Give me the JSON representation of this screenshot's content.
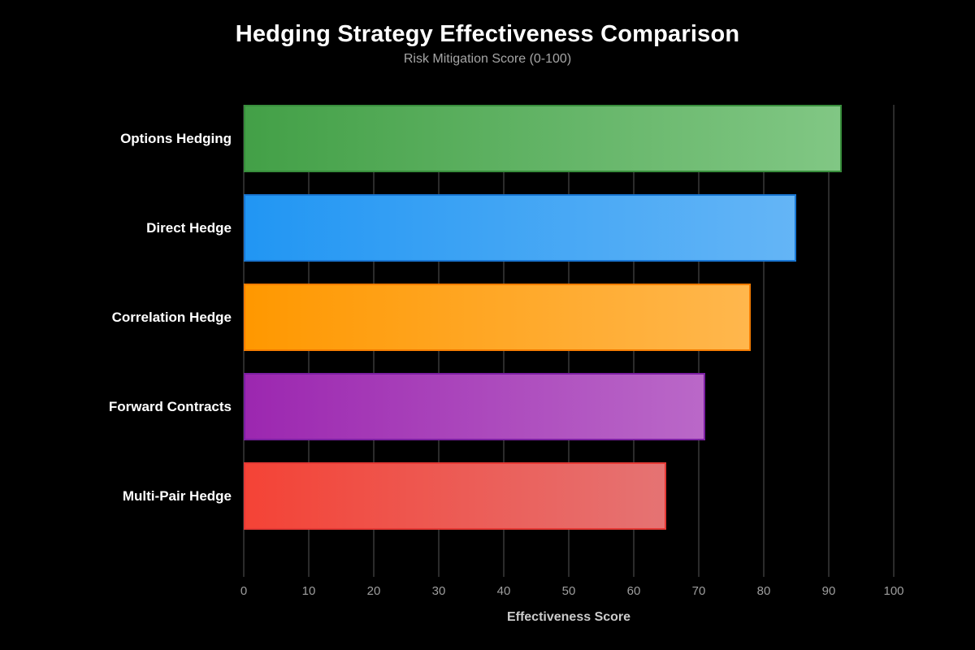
{
  "header": {
    "title": "Hedging Strategy Effectiveness Comparison",
    "subtitle": "Risk Mitigation Score (0-100)"
  },
  "chart_data": {
    "type": "bar",
    "orientation": "horizontal",
    "title": "Hedging Strategy Effectiveness Comparison",
    "subtitle": "Risk Mitigation Score (0-100)",
    "xlabel": "Effectiveness Score",
    "ylabel": "",
    "xlim": [
      0,
      100
    ],
    "x_ticks": [
      0,
      10,
      20,
      30,
      40,
      50,
      60,
      70,
      80,
      90,
      100
    ],
    "grid": true,
    "legend": false,
    "categories": [
      "Options Hedging",
      "Direct Hedge",
      "Correlation Hedge",
      "Forward Contracts",
      "Multi-Pair Hedge"
    ],
    "values": [
      92,
      85,
      78,
      71,
      65
    ],
    "bars": [
      {
        "label": "Options Hedging",
        "value": 92,
        "color_start": "#43a047",
        "color_end": "#81c784",
        "border": "#388e3c"
      },
      {
        "label": "Direct Hedge",
        "value": 85,
        "color_start": "#2196f3",
        "color_end": "#64b5f6",
        "border": "#1976d2"
      },
      {
        "label": "Correlation Hedge",
        "value": 78,
        "color_start": "#ff9800",
        "color_end": "#ffb74d",
        "border": "#f57c00"
      },
      {
        "label": "Forward Contracts",
        "value": 71,
        "color_start": "#9c27b0",
        "color_end": "#ba68c8",
        "border": "#7b1fa2"
      },
      {
        "label": "Multi-Pair Hedge",
        "value": 65,
        "color_start": "#f44336",
        "color_end": "#e57373",
        "border": "#e53935"
      }
    ]
  },
  "colors": {
    "background": "#000000",
    "title": "#ffffff",
    "subtitle": "#a6a6a6",
    "grid": "#2b2b2b",
    "tick_label": "#9e9e9e",
    "axis_label": "#cccccc",
    "category_label": "#ffffff"
  }
}
